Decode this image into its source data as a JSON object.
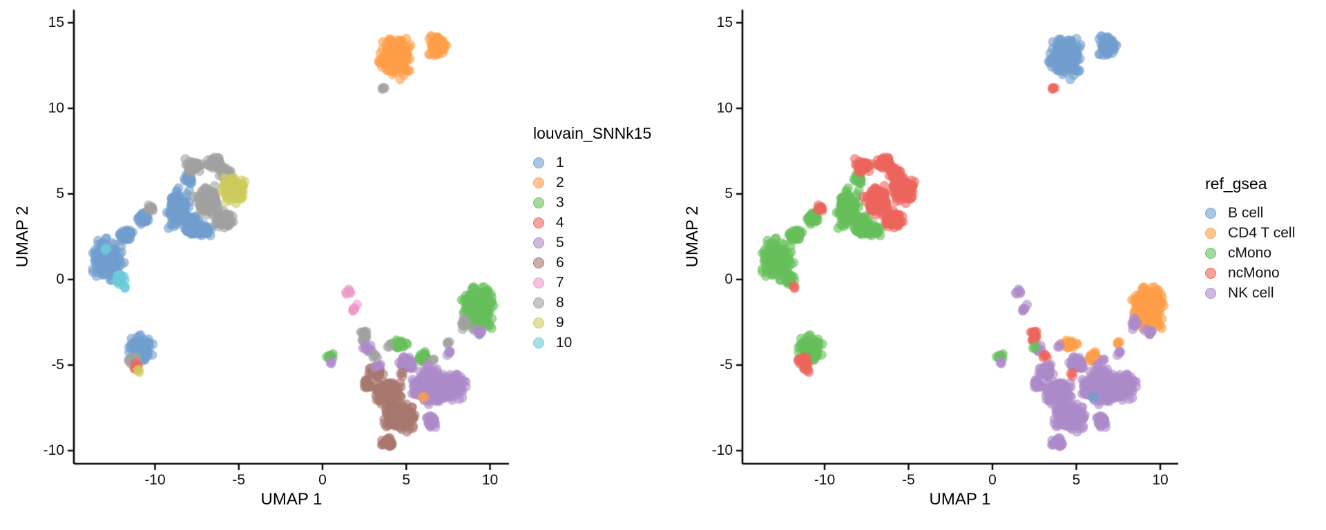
{
  "figure": {
    "background": "#FFFFFF",
    "description_left_panel": "UMAP embedding colored by louvain_SNNk15 clusters",
    "description_right_panel": "UMAP embedding colored by ref_gsea cell type labels"
  },
  "chart_data": {
    "type": "scatter",
    "panels": [
      {
        "xlabel": "UMAP 1",
        "ylabel": "UMAP 2",
        "legend_title": "louvain_SNNk15",
        "legend_position": "right",
        "color_key": "louvain",
        "x_ticks": [
          -10,
          -5,
          0,
          5,
          10
        ],
        "y_ticks": [
          15,
          10,
          5,
          0,
          -5,
          -10
        ],
        "xlim": [
          -14.9,
          11.1
        ],
        "ylim": [
          -10.8,
          15.8
        ],
        "grid": false,
        "legend_entries": [
          "1",
          "2",
          "3",
          "4",
          "5",
          "6",
          "7",
          "8",
          "9",
          "10"
        ]
      },
      {
        "xlabel": "UMAP 1",
        "ylabel": "UMAP 2",
        "legend_title": "ref_gsea",
        "legend_position": "right",
        "color_key": "gsea",
        "x_ticks": [
          -10,
          -5,
          0,
          5,
          10
        ],
        "y_ticks": [
          15,
          10,
          5,
          0,
          -5,
          -10
        ],
        "xlim": [
          -14.9,
          11.1
        ],
        "ylim": [
          -10.8,
          15.8
        ],
        "grid": false,
        "legend_entries": [
          "B cell",
          "CD4 T cell",
          "cMono",
          "ncMono",
          "NK cell"
        ]
      }
    ],
    "louvain_colors": {
      "1": "#729ECE",
      "2": "#FF9E4A",
      "3": "#67BF5C",
      "4": "#ED665D",
      "5": "#AD8BC9",
      "6": "#A8786E",
      "7": "#ED97CA",
      "8": "#A2A2A2",
      "9": "#CDCC5D",
      "10": "#6DCCDA"
    },
    "gsea_colors": {
      "B cell": "#729ECE",
      "CD4 T cell": "#FF9E4A",
      "cMono": "#67BF5C",
      "ncMono": "#ED665D",
      "NK cell": "#AD8BC9"
    },
    "blobs_columns": [
      "umap1_center",
      "umap2_center",
      "spread_x",
      "spread_y",
      "n_cells",
      "louvain",
      "gsea"
    ],
    "blobs": [
      [
        4.35,
        13.0,
        1.2,
        1.5,
        200,
        "2",
        "B cell"
      ],
      [
        6.85,
        13.6,
        0.7,
        0.8,
        55,
        "2",
        "B cell"
      ],
      [
        -12.9,
        1.2,
        1.1,
        1.4,
        170,
        "1",
        "cMono"
      ],
      [
        -12.1,
        0.1,
        0.4,
        0.5,
        20,
        "10",
        "cMono"
      ],
      [
        -12.95,
        1.8,
        0.2,
        0.2,
        3,
        "10",
        "cMono"
      ],
      [
        -11.7,
        2.6,
        0.55,
        0.5,
        45,
        "1",
        "cMono"
      ],
      [
        -10.7,
        3.6,
        0.5,
        0.5,
        50,
        "1",
        "cMono"
      ],
      [
        -8.6,
        4.1,
        0.8,
        1.3,
        160,
        "1",
        "cMono"
      ],
      [
        -7.8,
        3.3,
        0.6,
        0.6,
        60,
        "1",
        "cMono"
      ],
      [
        -7.4,
        2.9,
        1.1,
        0.5,
        110,
        "1",
        "cMono"
      ],
      [
        -8.0,
        5.9,
        0.4,
        0.4,
        25,
        "1",
        "cMono"
      ],
      [
        -7.7,
        6.6,
        0.6,
        0.5,
        55,
        "8",
        "ncMono"
      ],
      [
        -6.4,
        6.8,
        0.6,
        0.5,
        55,
        "8",
        "ncMono"
      ],
      [
        -5.8,
        6.2,
        0.5,
        0.45,
        40,
        "8",
        "ncMono"
      ],
      [
        -6.9,
        4.6,
        0.85,
        0.95,
        110,
        "8",
        "ncMono"
      ],
      [
        -5.9,
        3.5,
        0.8,
        0.55,
        85,
        "8",
        "ncMono"
      ],
      [
        -5.3,
        5.2,
        0.85,
        0.95,
        130,
        "9",
        "ncMono"
      ],
      [
        -10.9,
        -4.0,
        0.85,
        1.0,
        120,
        "1",
        "cMono"
      ],
      [
        -11.3,
        -4.7,
        0.4,
        0.35,
        26,
        "8",
        "ncMono"
      ],
      [
        -11.15,
        -5.1,
        0.3,
        0.25,
        8,
        "4",
        "ncMono"
      ],
      [
        -11.0,
        -5.35,
        0.15,
        0.12,
        3,
        "9",
        "ncMono"
      ],
      [
        9.3,
        -1.6,
        1.15,
        1.5,
        280,
        "3",
        "CD4 T cell"
      ],
      [
        6.5,
        -6.3,
        1.4,
        1.2,
        300,
        "5",
        "NK cell"
      ],
      [
        7.9,
        -6.2,
        0.85,
        1.0,
        90,
        "5",
        "NK cell"
      ],
      [
        6.5,
        -8.3,
        0.5,
        0.45,
        35,
        "5",
        "NK cell"
      ],
      [
        3.2,
        -5.4,
        0.55,
        0.55,
        45,
        "6",
        "NK cell"
      ],
      [
        3.9,
        -6.6,
        1.0,
        0.85,
        190,
        "6",
        "NK cell"
      ],
      [
        4.6,
        -8.1,
        1.15,
        0.95,
        230,
        "6",
        "NK cell"
      ],
      [
        3.9,
        -9.5,
        0.6,
        0.35,
        35,
        "6",
        "NK cell"
      ],
      [
        2.7,
        -6.1,
        0.35,
        0.5,
        22,
        "6",
        "NK cell"
      ],
      [
        5.0,
        -4.9,
        0.65,
        0.45,
        55,
        "5",
        "NK cell"
      ],
      [
        4.6,
        -3.8,
        0.6,
        0.28,
        26,
        "3",
        "CD4 T cell"
      ],
      [
        6.05,
        -4.55,
        0.42,
        0.35,
        30,
        "3",
        "CD4 T cell"
      ],
      [
        8.45,
        -2.6,
        0.35,
        0.5,
        12,
        "8",
        "NK cell"
      ],
      [
        9.3,
        -3.1,
        0.4,
        0.3,
        10,
        "5",
        "NK cell"
      ],
      [
        7.5,
        -3.75,
        0.25,
        0.25,
        4,
        "8",
        "CD4 T cell"
      ],
      [
        7.6,
        -4.2,
        0.25,
        0.25,
        5,
        "5",
        "NK cell"
      ],
      [
        0.45,
        -4.55,
        0.35,
        0.28,
        8,
        "3",
        "cMono"
      ],
      [
        0.55,
        -4.85,
        0.18,
        0.15,
        3,
        "5",
        "NK cell"
      ],
      [
        1.55,
        -0.75,
        0.28,
        0.33,
        6,
        "7",
        "NK cell"
      ],
      [
        1.95,
        -1.65,
        0.28,
        0.33,
        6,
        "7",
        "NK cell"
      ],
      [
        2.5,
        -3.3,
        0.28,
        0.65,
        18,
        "8",
        "ncMono"
      ],
      [
        2.8,
        -4.1,
        0.25,
        0.3,
        8,
        "5",
        "NK cell"
      ],
      [
        2.5,
        -3.95,
        0.15,
        0.15,
        3,
        "5",
        "cMono"
      ],
      [
        3.1,
        -4.5,
        0.28,
        0.25,
        5,
        "8",
        "ncMono"
      ],
      [
        3.3,
        -5.0,
        0.28,
        0.25,
        5,
        "5",
        "NK cell"
      ],
      [
        3.95,
        -3.9,
        0.2,
        0.18,
        3,
        "8",
        "NK cell"
      ],
      [
        6.55,
        -4.75,
        0.22,
        0.18,
        3,
        "8",
        "NK cell"
      ],
      [
        6.3,
        -5.0,
        0.2,
        0.18,
        3,
        "5",
        "NK cell"
      ],
      [
        3.75,
        11.15,
        0.4,
        0.13,
        4,
        "8",
        "ncMono"
      ],
      [
        -10.25,
        4.2,
        0.3,
        0.25,
        12,
        "8",
        "ncMono"
      ],
      [
        6.0,
        -6.9,
        0.2,
        0.15,
        2,
        "2",
        "B cell"
      ],
      [
        4.7,
        -5.5,
        0.2,
        0.18,
        3,
        "6",
        "ncMono"
      ],
      [
        -11.85,
        -0.45,
        0.15,
        0.12,
        3,
        "10",
        "ncMono"
      ]
    ]
  }
}
